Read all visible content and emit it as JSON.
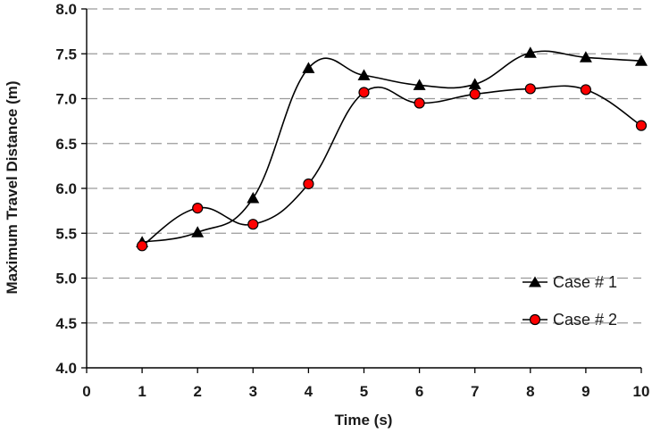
{
  "chart_data": {
    "type": "line",
    "title": "",
    "xlabel": "Time (s)",
    "ylabel": "Maximum Travel Distance (m)",
    "xlim": [
      0,
      10
    ],
    "ylim": [
      4.0,
      8.0
    ],
    "x_ticks": [
      0,
      1,
      2,
      3,
      4,
      5,
      6,
      7,
      8,
      9,
      10
    ],
    "y_ticks": [
      "4.0",
      "4.5",
      "5.0",
      "5.5",
      "6.0",
      "6.5",
      "7.0",
      "7.5",
      "8.0"
    ],
    "grid": "horizontal dashed",
    "legend_position": "lower-right",
    "series": [
      {
        "name": "Case # 1",
        "marker": "triangle",
        "color": "#000000",
        "x": [
          1,
          2,
          3,
          4,
          5,
          6,
          7,
          8,
          9,
          10
        ],
        "values": [
          5.4,
          5.51,
          5.89,
          7.34,
          7.26,
          7.15,
          7.16,
          7.51,
          7.46,
          7.42
        ]
      },
      {
        "name": "Case # 2",
        "marker": "circle",
        "color": "#ff0000",
        "x": [
          1,
          2,
          3,
          4,
          5,
          6,
          7,
          8,
          9,
          10
        ],
        "values": [
          5.36,
          5.78,
          5.6,
          6.05,
          7.07,
          6.95,
          7.05,
          7.11,
          7.1,
          6.7
        ]
      }
    ]
  }
}
